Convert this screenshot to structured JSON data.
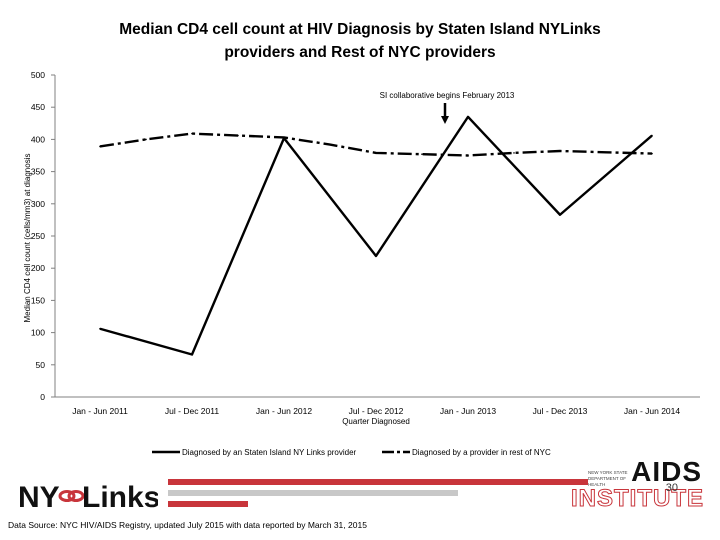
{
  "title_line1": "Median CD4 cell count at HIV Diagnosis by Staten Island NYLinks",
  "title_line2": "providers and Rest of NYC providers",
  "chart_data": {
    "type": "line",
    "title": "Median CD4 cell count at HIV Diagnosis by Staten Island NYLinks providers and Rest of NYC providers",
    "xlabel": "Quarter Diagnosed",
    "ylabel": "Median CD4 cell count (cells/mm3) at diagnosis",
    "ylim": [
      0,
      500
    ],
    "yticks": [
      0,
      50,
      100,
      150,
      200,
      250,
      300,
      350,
      400,
      450,
      500
    ],
    "categories": [
      "Jan - Jun 2011",
      "Jul - Dec 2011",
      "Jan - Jun 2012",
      "Jul - Dec 2012",
      "Jan - Jun 2013",
      "Jul - Dec 2013",
      "Jan - Jun 2014"
    ],
    "x": [
      0,
      0.5,
      1,
      1.5,
      2,
      2.5,
      3,
      3.5,
      4,
      4.5,
      5,
      5.5,
      6
    ],
    "series": [
      {
        "name": "Diagnosed by an Staten Island NY Links provider",
        "color": "#000000",
        "style": "solid",
        "values": [
          106,
          null,
          66,
          null,
          402,
          null,
          219,
          null,
          435,
          null,
          283,
          null,
          406
        ]
      },
      {
        "name": "Diagnosed by a provider in rest of NYC",
        "color": "#000000",
        "style": "dashdot",
        "values": [
          389,
          400,
          409,
          406,
          403,
          392,
          379,
          377,
          375,
          379,
          382,
          380,
          378
        ]
      }
    ],
    "annotation": {
      "text": "SI collaborative begins February 2013",
      "points_to_x": 3.75
    },
    "legend_position": "bottom"
  },
  "footer": {
    "logo_text": "NY-Links",
    "aids_top": "AIDS",
    "aids_bottom": "INSTITUTE",
    "aids_small": "NEW YORK STATE DEPARTMENT OF HEALTH",
    "page_number": "30",
    "source": "Data Source: NYC HIV/AIDS Registry, updated July 2015 with data reported by March 31, 2015"
  },
  "colors": {
    "accent_red": "#c8353b",
    "bar_gray": "#c8c8c8"
  }
}
